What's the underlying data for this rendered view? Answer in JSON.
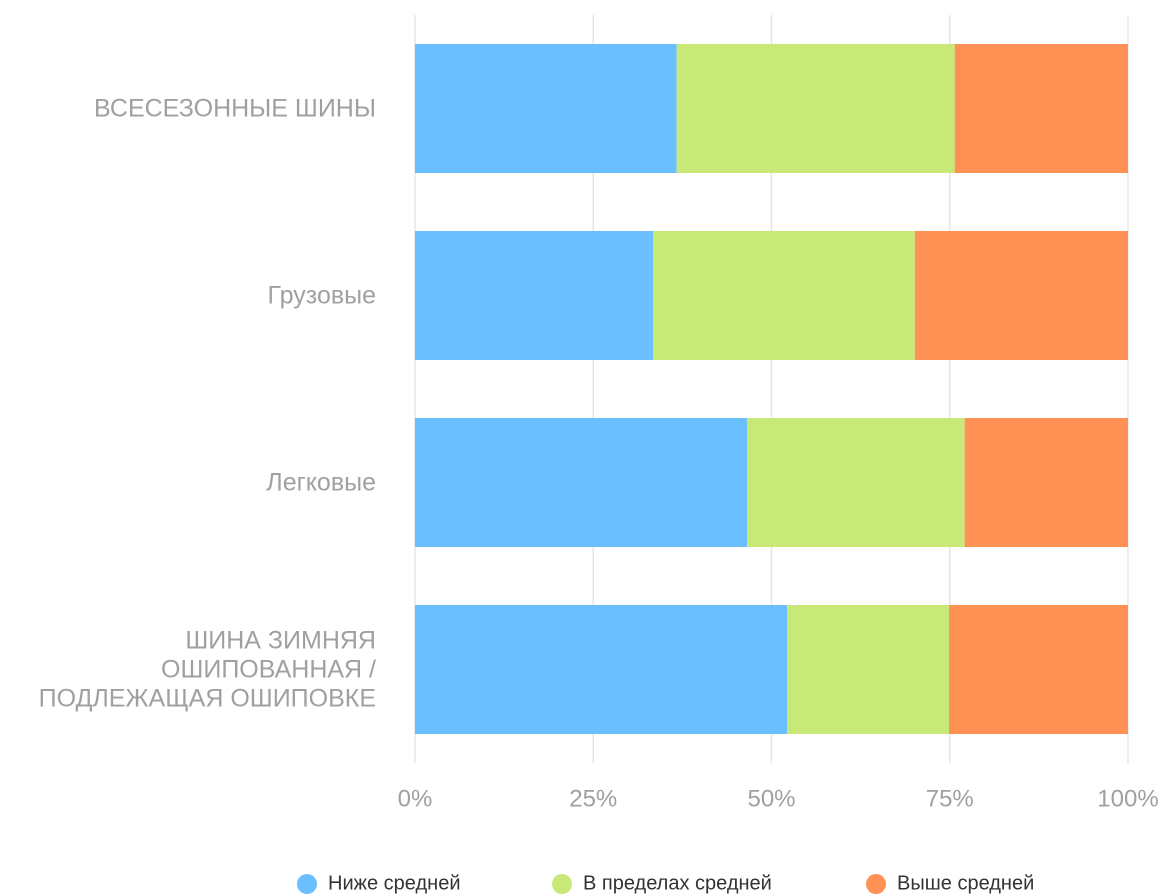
{
  "chart_data": {
    "type": "stacked_barh",
    "categories": [
      "ВСЕСЕЗОННЫЕ ШИНЫ",
      "Грузовые",
      "Легковые",
      "ШИНА ЗИМНЯЯ ОШИПОВАННАЯ / ПОДЛЕЖАЩАЯ ОШИПОВКЕ"
    ],
    "series": [
      {
        "name": "Ниже средней",
        "color": "#6bbfff",
        "values": [
          36.7,
          33.4,
          46.6,
          52.2
        ]
      },
      {
        "name": "В пределах средней",
        "color": "#c8e878",
        "values": [
          39.0,
          36.7,
          30.5,
          22.7
        ]
      },
      {
        "name": "Выше средней",
        "color": "#ff9155",
        "values": [
          24.3,
          29.9,
          22.9,
          25.1
        ]
      }
    ],
    "xlim": [
      0,
      100
    ],
    "xticks": [
      {
        "value": 0,
        "label": "0%"
      },
      {
        "value": 25,
        "label": "25%"
      },
      {
        "value": 50,
        "label": "50%"
      },
      {
        "value": 75,
        "label": "75%"
      },
      {
        "value": 100,
        "label": "100%"
      }
    ],
    "grid": true,
    "legend": "bottom"
  }
}
